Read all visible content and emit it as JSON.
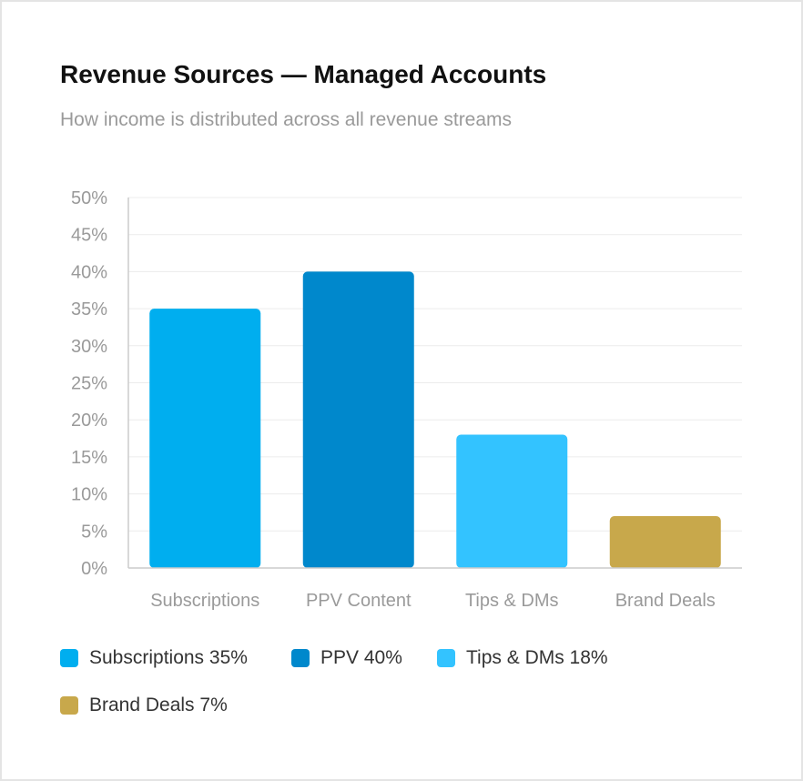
{
  "title": "Revenue Sources — Managed Accounts",
  "subtitle": "How income is distributed across all revenue streams",
  "chart_data": {
    "type": "bar",
    "categories": [
      "Subscriptions",
      "PPV Content",
      "Tips & DMs",
      "Brand Deals"
    ],
    "values": [
      35,
      40,
      18,
      7
    ],
    "colors": [
      "#00aeef",
      "#0088cc",
      "#33c3ff",
      "#c8a84b"
    ],
    "ylim": [
      0,
      50
    ],
    "yticks": [
      0,
      5,
      10,
      15,
      20,
      25,
      30,
      35,
      40,
      45,
      50
    ],
    "ytick_suffix": "%",
    "grid": true,
    "legend_position": "bottom",
    "legend": [
      {
        "label": "Subscriptions 35%",
        "color": "#00aeef"
      },
      {
        "label": "PPV 40%",
        "color": "#0088cc"
      },
      {
        "label": "Tips & DMs 18%",
        "color": "#33c3ff"
      },
      {
        "label": "Brand Deals 7%",
        "color": "#c8a84b"
      }
    ]
  }
}
